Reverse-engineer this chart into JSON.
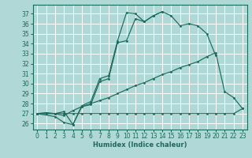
{
  "xlabel": "Humidex (Indice chaleur)",
  "bg_color": "#b0d8d6",
  "grid_color": "#ffffff",
  "line_color": "#1a6b5a",
  "xlim": [
    -0.5,
    23.5
  ],
  "ylim": [
    25.4,
    37.9
  ],
  "xticks": [
    0,
    1,
    2,
    3,
    4,
    5,
    6,
    7,
    8,
    9,
    10,
    11,
    12,
    13,
    14,
    15,
    16,
    17,
    18,
    19,
    20,
    21,
    22,
    23
  ],
  "yticks": [
    26,
    27,
    28,
    29,
    30,
    31,
    32,
    33,
    34,
    35,
    36,
    37
  ],
  "curves": [
    {
      "x": [
        0,
        1,
        2,
        3,
        4,
        5,
        6,
        7,
        8,
        9,
        10,
        11,
        12,
        13,
        14,
        15,
        16,
        17,
        18,
        19,
        20,
        21,
        22,
        23
      ],
      "y": [
        27.0,
        27.1,
        27.0,
        27.0,
        27.0,
        27.0,
        27.0,
        27.0,
        27.0,
        27.0,
        27.0,
        27.0,
        27.0,
        27.0,
        27.0,
        27.0,
        27.0,
        27.0,
        27.0,
        27.0,
        27.0,
        27.0,
        27.0,
        27.5
      ]
    },
    {
      "x": [
        0,
        1,
        2,
        3,
        4,
        5,
        6,
        7,
        8,
        9,
        10,
        11,
        12,
        13,
        14,
        15,
        16,
        17,
        18,
        19,
        20,
        21,
        22,
        23
      ],
      "y": [
        27.0,
        27.0,
        27.0,
        26.8,
        27.3,
        27.7,
        28.0,
        28.3,
        28.6,
        29.0,
        29.4,
        29.8,
        30.1,
        30.5,
        30.9,
        31.2,
        31.6,
        31.9,
        32.2,
        32.7,
        33.1,
        29.2,
        28.6,
        27.5
      ]
    },
    {
      "x": [
        0,
        2,
        3,
        4,
        5,
        6,
        7,
        8,
        9,
        10,
        11,
        12,
        13,
        14,
        15,
        16,
        17,
        18,
        19,
        20
      ],
      "y": [
        27.0,
        26.7,
        26.1,
        25.9,
        27.7,
        27.9,
        30.2,
        30.5,
        34.1,
        34.3,
        36.5,
        36.2,
        36.8,
        37.2,
        36.8,
        35.8,
        36.0,
        35.8,
        35.0,
        32.8
      ]
    },
    {
      "x": [
        0,
        2,
        3,
        4,
        5,
        6,
        7,
        8,
        9,
        10,
        11,
        12,
        13,
        14
      ],
      "y": [
        27.0,
        27.0,
        27.2,
        25.9,
        27.8,
        28.2,
        30.5,
        30.8,
        34.3,
        37.1,
        37.0,
        36.2,
        36.8,
        37.2
      ]
    }
  ]
}
